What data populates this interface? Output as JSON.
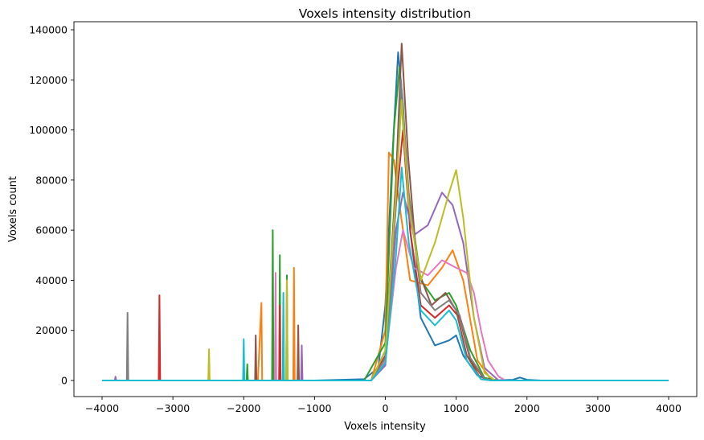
{
  "chart_data": {
    "type": "line",
    "title": "Voxels intensity distribution",
    "xlabel": "Voxels intensity",
    "ylabel": "Voxels count",
    "xlim": [
      -4000,
      4000
    ],
    "ylim": [
      0,
      140000
    ],
    "x_ticks": [
      -4000,
      -3000,
      -2000,
      -1000,
      0,
      1000,
      2000,
      3000,
      4000
    ],
    "x_tick_labels": [
      "−4000",
      "−3000",
      "−2000",
      "−1000",
      "0",
      "1000",
      "2000",
      "3000",
      "4000"
    ],
    "y_ticks": [
      0,
      20000,
      40000,
      60000,
      80000,
      100000,
      120000,
      140000
    ],
    "y_tick_labels": [
      "0",
      "20000",
      "40000",
      "60000",
      "80000",
      "100000",
      "120000",
      "140000"
    ],
    "grid": false,
    "legend": "none",
    "note_series": "Many overlapping unlabeled histogram lines; representative envelopes below.",
    "series": [
      {
        "color": "#1f77b4",
        "points": [
          [
            -4000,
            0
          ],
          [
            -1000,
            0
          ],
          [
            -300,
            500
          ],
          [
            -100,
            5000
          ],
          [
            0,
            30000
          ],
          [
            100,
            90000
          ],
          [
            180,
            131000
          ],
          [
            250,
            110000
          ],
          [
            350,
            60000
          ],
          [
            500,
            25000
          ],
          [
            700,
            14000
          ],
          [
            900,
            16000
          ],
          [
            1000,
            18000
          ],
          [
            1100,
            10000
          ],
          [
            1300,
            2000
          ],
          [
            1500,
            0
          ],
          [
            1800,
            300
          ],
          [
            1900,
            1200
          ],
          [
            2000,
            300
          ],
          [
            2200,
            0
          ],
          [
            4000,
            0
          ]
        ]
      },
      {
        "color": "#ff7f0e",
        "points": [
          [
            -4000,
            0
          ],
          [
            -1800,
            0
          ],
          [
            -1750,
            31000
          ],
          [
            -1740,
            0
          ],
          [
            -1300,
            0
          ],
          [
            -1290,
            45000
          ],
          [
            -1280,
            0
          ],
          [
            -200,
            0
          ],
          [
            0,
            20000
          ],
          [
            50,
            91000
          ],
          [
            120,
            88000
          ],
          [
            200,
            70000
          ],
          [
            350,
            40000
          ],
          [
            600,
            38000
          ],
          [
            800,
            45000
          ],
          [
            950,
            52000
          ],
          [
            1100,
            40000
          ],
          [
            1300,
            8000
          ],
          [
            1500,
            0
          ],
          [
            4000,
            0
          ]
        ]
      },
      {
        "color": "#2ca02c",
        "points": [
          [
            -4000,
            0
          ],
          [
            -1960,
            0
          ],
          [
            -1950,
            6500
          ],
          [
            -1940,
            0
          ],
          [
            -1600,
            0
          ],
          [
            -1590,
            60000
          ],
          [
            -1580,
            0
          ],
          [
            -1500,
            0
          ],
          [
            -1490,
            50000
          ],
          [
            -1480,
            0
          ],
          [
            -1400,
            0
          ],
          [
            -1390,
            42000
          ],
          [
            -1380,
            0
          ],
          [
            -300,
            0
          ],
          [
            0,
            15000
          ],
          [
            120,
            100000
          ],
          [
            200,
            125000
          ],
          [
            300,
            80000
          ],
          [
            500,
            40000
          ],
          [
            700,
            32000
          ],
          [
            900,
            35000
          ],
          [
            1000,
            30000
          ],
          [
            1200,
            12000
          ],
          [
            1400,
            1000
          ],
          [
            1600,
            0
          ],
          [
            4000,
            0
          ]
        ]
      },
      {
        "color": "#d62728",
        "points": [
          [
            -4000,
            0
          ],
          [
            -3200,
            0
          ],
          [
            -3190,
            34000
          ],
          [
            -3180,
            0
          ],
          [
            -1500,
            0
          ],
          [
            -1490,
            30000
          ],
          [
            -1480,
            0
          ],
          [
            -200,
            0
          ],
          [
            0,
            10000
          ],
          [
            150,
            70000
          ],
          [
            250,
            100000
          ],
          [
            350,
            60000
          ],
          [
            500,
            30000
          ],
          [
            700,
            25000
          ],
          [
            900,
            30000
          ],
          [
            1050,
            25000
          ],
          [
            1200,
            8000
          ],
          [
            1400,
            500
          ],
          [
            1600,
            0
          ],
          [
            4000,
            0
          ]
        ]
      },
      {
        "color": "#9467bd",
        "points": [
          [
            -4000,
            0
          ],
          [
            -3820,
            0
          ],
          [
            -3810,
            1500
          ],
          [
            -3800,
            0
          ],
          [
            -1190,
            0
          ],
          [
            -1180,
            14000
          ],
          [
            -1170,
            0
          ],
          [
            -200,
            0
          ],
          [
            0,
            6000
          ],
          [
            150,
            60000
          ],
          [
            250,
            75000
          ],
          [
            400,
            58000
          ],
          [
            600,
            62000
          ],
          [
            800,
            75000
          ],
          [
            950,
            70000
          ],
          [
            1100,
            55000
          ],
          [
            1250,
            25000
          ],
          [
            1400,
            5000
          ],
          [
            1600,
            0
          ],
          [
            4000,
            0
          ]
        ]
      },
      {
        "color": "#8c564b",
        "points": [
          [
            -4000,
            0
          ],
          [
            -1840,
            0
          ],
          [
            -1830,
            18000
          ],
          [
            -1820,
            0
          ],
          [
            -1240,
            0
          ],
          [
            -1230,
            22000
          ],
          [
            -1220,
            0
          ],
          [
            -200,
            0
          ],
          [
            0,
            12000
          ],
          [
            150,
            80000
          ],
          [
            230,
            134500
          ],
          [
            320,
            90000
          ],
          [
            450,
            45000
          ],
          [
            650,
            30000
          ],
          [
            850,
            35000
          ],
          [
            1000,
            28000
          ],
          [
            1150,
            10000
          ],
          [
            1350,
            500
          ],
          [
            1500,
            0
          ],
          [
            4000,
            0
          ]
        ]
      },
      {
        "color": "#e377c2",
        "points": [
          [
            -4000,
            0
          ],
          [
            -1560,
            0
          ],
          [
            -1550,
            43000
          ],
          [
            -1540,
            0
          ],
          [
            -200,
            0
          ],
          [
            0,
            8000
          ],
          [
            150,
            45000
          ],
          [
            250,
            60000
          ],
          [
            400,
            45000
          ],
          [
            600,
            42000
          ],
          [
            800,
            48000
          ],
          [
            1000,
            45000
          ],
          [
            1150,
            43000
          ],
          [
            1250,
            35000
          ],
          [
            1350,
            20000
          ],
          [
            1450,
            8000
          ],
          [
            1600,
            1500
          ],
          [
            1700,
            0
          ],
          [
            4000,
            0
          ]
        ]
      },
      {
        "color": "#7f7f7f",
        "points": [
          [
            -4000,
            0
          ],
          [
            -3650,
            0
          ],
          [
            -3640,
            27000
          ],
          [
            -3630,
            0
          ],
          [
            -200,
            0
          ],
          [
            0,
            9000
          ],
          [
            150,
            70000
          ],
          [
            220,
            120000
          ],
          [
            330,
            75000
          ],
          [
            500,
            35000
          ],
          [
            700,
            28000
          ],
          [
            900,
            32000
          ],
          [
            1050,
            26000
          ],
          [
            1200,
            9000
          ],
          [
            1400,
            700
          ],
          [
            1550,
            0
          ],
          [
            4000,
            0
          ]
        ]
      },
      {
        "color": "#bcbd22",
        "points": [
          [
            -4000,
            0
          ],
          [
            -2500,
            0
          ],
          [
            -2490,
            12500
          ],
          [
            -2480,
            0
          ],
          [
            -1400,
            0
          ],
          [
            -1390,
            40000
          ],
          [
            -1380,
            0
          ],
          [
            -200,
            0
          ],
          [
            0,
            12000
          ],
          [
            150,
            75000
          ],
          [
            230,
            112000
          ],
          [
            330,
            70000
          ],
          [
            500,
            40000
          ],
          [
            700,
            55000
          ],
          [
            900,
            75000
          ],
          [
            1000,
            84000
          ],
          [
            1100,
            65000
          ],
          [
            1250,
            25000
          ],
          [
            1400,
            3000
          ],
          [
            1550,
            0
          ],
          [
            4000,
            0
          ]
        ]
      },
      {
        "color": "#17becf",
        "points": [
          [
            -4000,
            0
          ],
          [
            -2010,
            0
          ],
          [
            -2000,
            16500
          ],
          [
            -1990,
            0
          ],
          [
            -1450,
            0
          ],
          [
            -1440,
            35000
          ],
          [
            -1430,
            0
          ],
          [
            -200,
            0
          ],
          [
            0,
            7000
          ],
          [
            150,
            50000
          ],
          [
            230,
            85000
          ],
          [
            330,
            55000
          ],
          [
            500,
            28000
          ],
          [
            700,
            22000
          ],
          [
            900,
            28000
          ],
          [
            1000,
            24000
          ],
          [
            1150,
            8000
          ],
          [
            1350,
            500
          ],
          [
            1500,
            0
          ],
          [
            4000,
            0
          ]
        ]
      }
    ]
  }
}
